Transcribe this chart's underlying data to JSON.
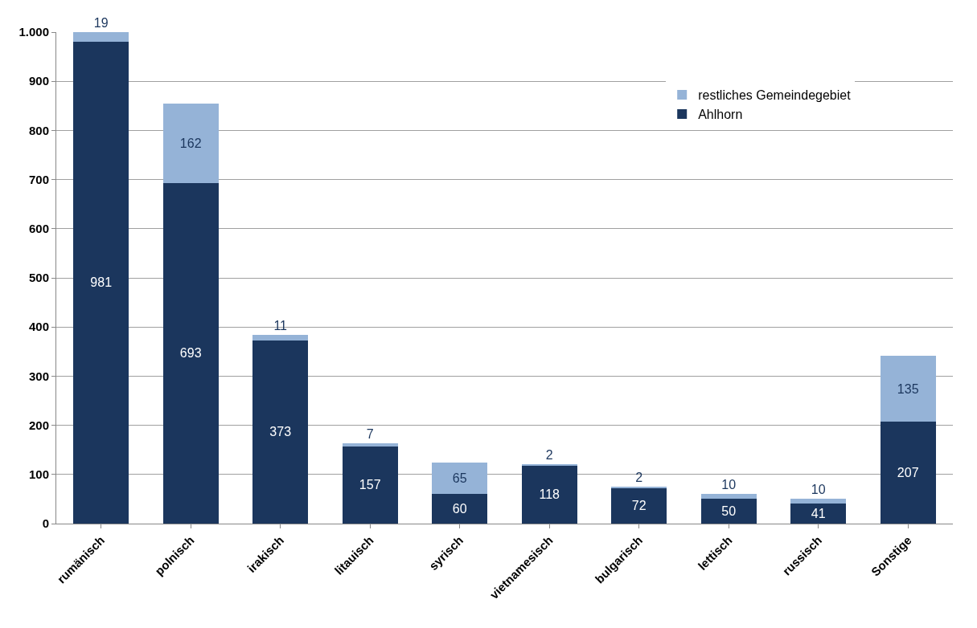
{
  "chart_data": {
    "type": "bar",
    "stacked": true,
    "categories": [
      "rumänisch",
      "polnisch",
      "irakisch",
      "litauisch",
      "syrisch",
      "vietnamesisch",
      "bulgarisch",
      "lettisch",
      "russisch",
      "Sonstige"
    ],
    "series": [
      {
        "name": "Ahlhorn",
        "color": "#1b365d",
        "values": [
          981,
          693,
          373,
          157,
          60,
          118,
          72,
          50,
          41,
          207
        ]
      },
      {
        "name": "restliches Gemeindegebiet",
        "color": "#95b3d7",
        "values": [
          19,
          162,
          11,
          7,
          65,
          2,
          2,
          10,
          10,
          135
        ]
      }
    ],
    "ylim": [
      0,
      1000
    ],
    "yticks": [
      0,
      100,
      200,
      300,
      400,
      500,
      600,
      700,
      800,
      900,
      {
        "value": 1000,
        "label": "1.000"
      }
    ],
    "grid": "y",
    "legend": "top right",
    "data_labels": true
  }
}
